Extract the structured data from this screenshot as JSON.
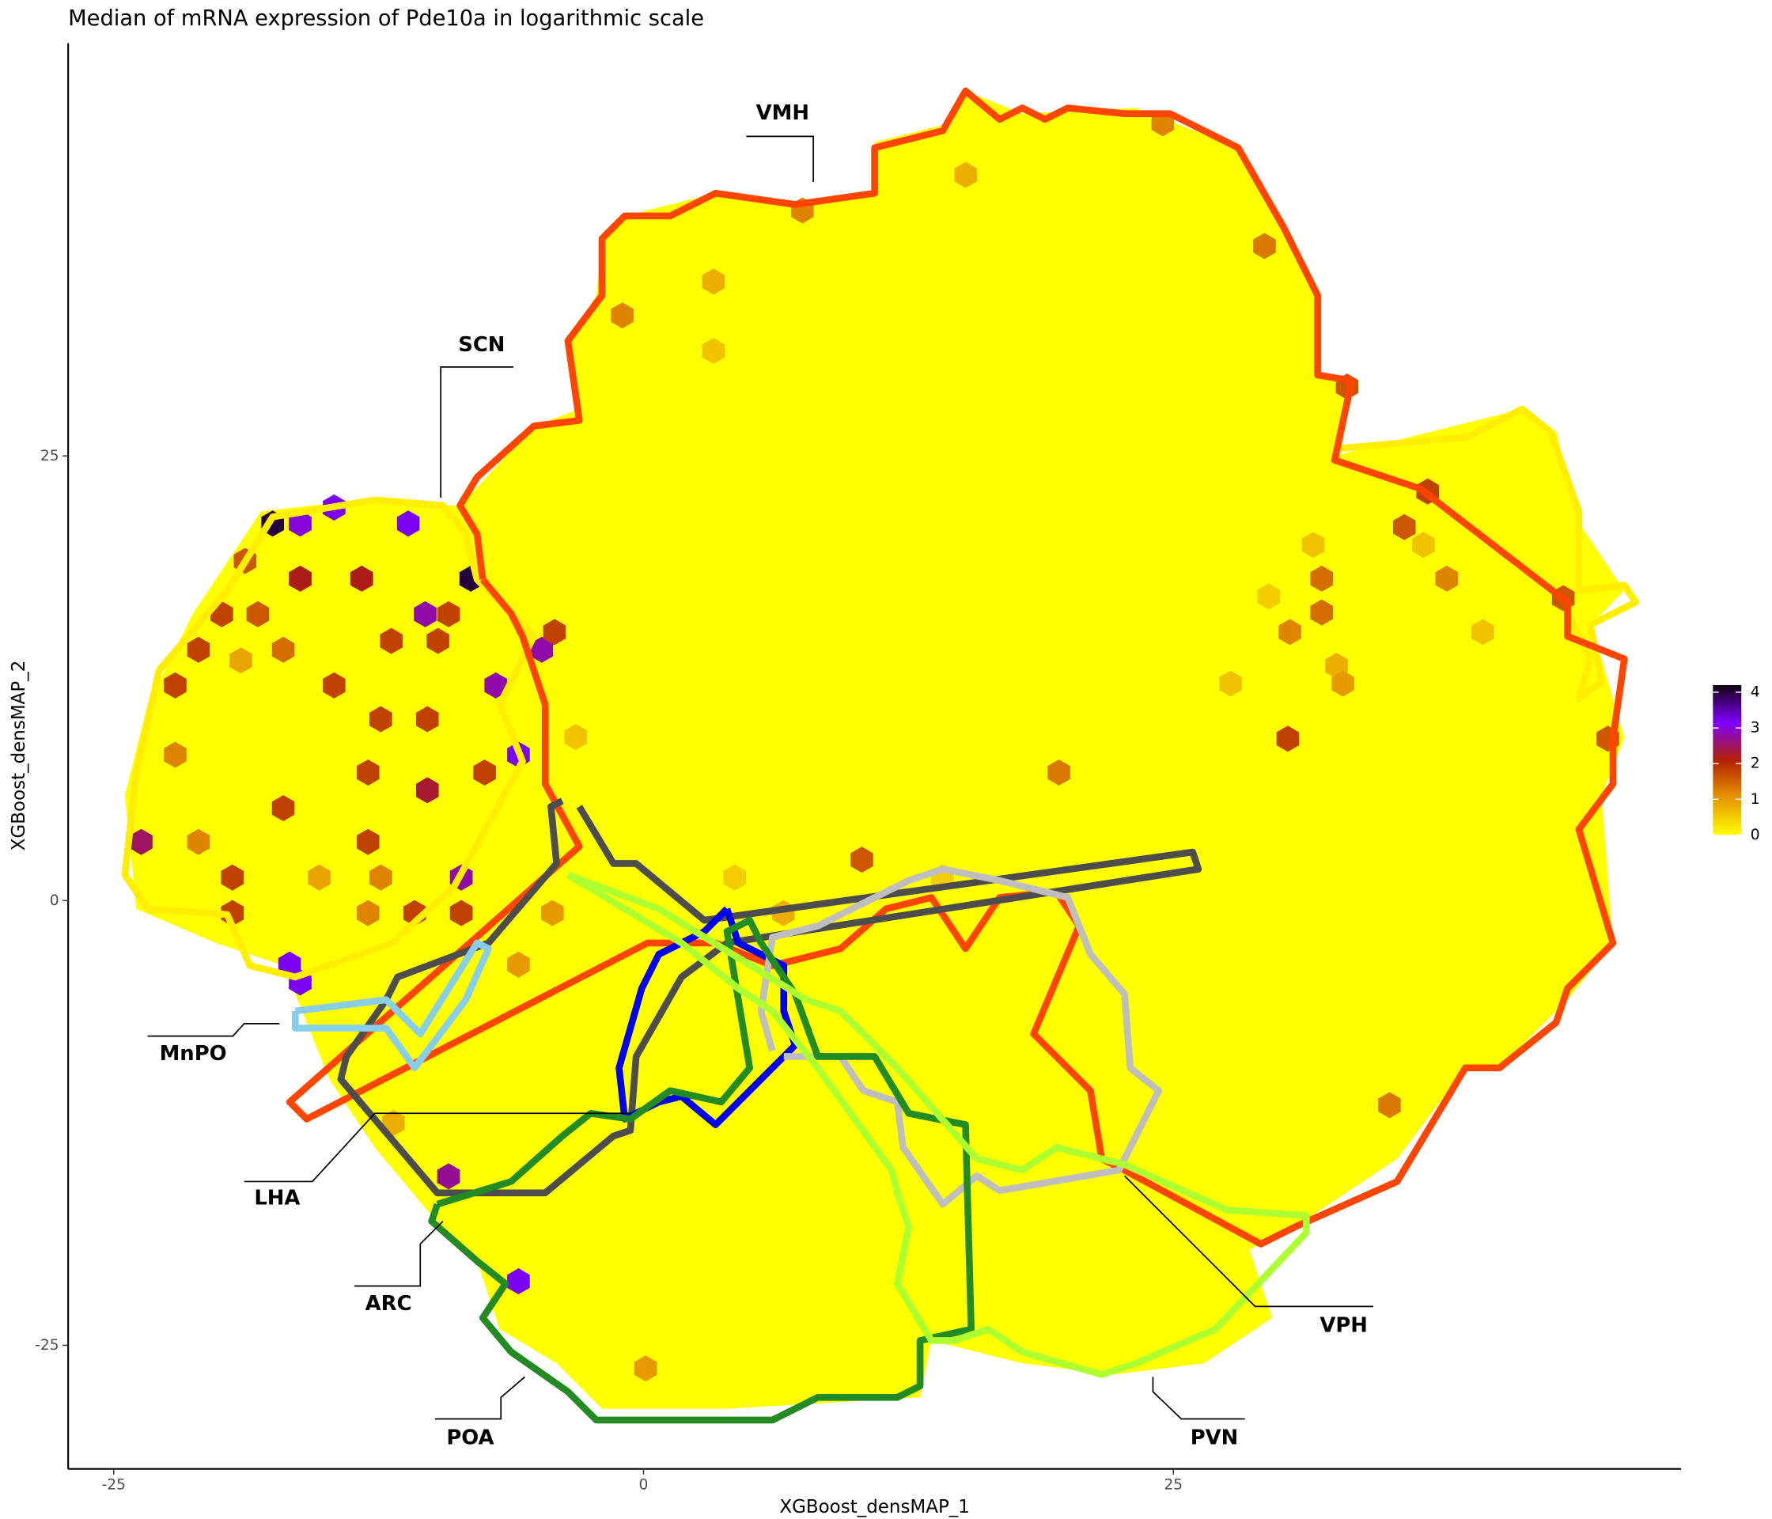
{
  "chart_data": {
    "type": "hexbin",
    "title": "Median of mRNA expression of Pde10a in logarithmic scale",
    "x_label": "XGBoost_densMAP_1",
    "y_label": "XGBoost_densMAP_2",
    "xlim": [
      -27.15,
      48.96
    ],
    "ylim": [
      -31.95,
      48.2
    ],
    "xticks": [
      -25,
      0,
      25
    ],
    "yticks": [
      -25,
      0,
      25
    ],
    "clim": [
      0,
      4.2
    ],
    "cticks": [
      0,
      1,
      2,
      3,
      4
    ],
    "colorscale": [
      "#ffff00",
      "#e69500",
      "#b22000",
      "#8000ff",
      "#100010"
    ],
    "annotations": [
      "VMH",
      "SCN",
      "MnPO",
      "LHA",
      "ARC",
      "POA",
      "PVN",
      "VPH"
    ],
    "hexbins": {
      "x": [
        -17.5,
        -8.15,
        -14.6,
        -11.1,
        -16.2,
        -23.7,
        -5.9,
        -6.97,
        -4.8,
        -9.2,
        -5.9,
        -16.7,
        -16.2,
        -8.6,
        -10.3,
        -19.9,
        -21,
        -22.1,
        -14.6,
        -12.4,
        -10.2,
        -10.2,
        -13,
        -7.5,
        -17,
        -19.4,
        -19.4,
        -13,
        -10.8,
        -8.6,
        10.3,
        35.9,
        37,
        30.4,
        43.4,
        45.5,
        32,
        33.2,
        -4.2,
        -16.2,
        -13.3,
        -18.2,
        -9.2,
        -11.9,
        -9.7,
        -17,
        -18.8,
        24.5,
        15.2,
        7.5,
        29.3,
        -1,
        3.3,
        3.3,
        19.6,
        31.6,
        32.7,
        30.5,
        29.5,
        37.9,
        39.6,
        27.7,
        35.2,
        32,
        -22.1,
        -19,
        -21,
        -15.3,
        -12.4,
        -13,
        -5.9,
        -4.3,
        -3.2,
        4.3,
        14.1,
        6.6,
        0.1,
        -11.8,
        33,
        36.8
      ],
      "y": [
        21.2,
        18.1,
        22.1,
        21.2,
        21.2,
        3.3,
        8.2,
        12.1,
        14.1,
        -15.5,
        -21.4,
        -3.6,
        -4.6,
        1.3,
        16.1,
        16.1,
        14.1,
        12.1,
        12.1,
        10.2,
        10.2,
        6.2,
        7.2,
        7.2,
        5.2,
        1.3,
        -0.7,
        3.3,
        -0.7,
        -0.7,
        2.3,
        21,
        23,
        9.1,
        17,
        9.1,
        18.1,
        28.9,
        15.1,
        18.1,
        18.1,
        16.1,
        16.1,
        14.6,
        14.6,
        14.1,
        19.1,
        43.7,
        40.8,
        38.8,
        36.8,
        32.9,
        34.8,
        30.9,
        7.2,
        20,
        13.2,
        15.1,
        17.1,
        18.1,
        15.1,
        12.2,
        -11.5,
        16.2,
        8.2,
        13.5,
        3.3,
        1.3,
        1.3,
        -0.7,
        -3.6,
        -0.7,
        9.2,
        1.3,
        1.3,
        -0.7,
        -26.3,
        -12.5,
        12.2,
        20
      ],
      "values": [
        4,
        4,
        3.2,
        3.2,
        3,
        2.5,
        3.2,
        2.8,
        2.8,
        2.7,
        3.2,
        3.2,
        3.2,
        2.8,
        2.8,
        1.8,
        1.8,
        1.8,
        1.8,
        1.8,
        1.8,
        2.3,
        1.8,
        1.8,
        1.8,
        1.8,
        1.8,
        1.8,
        1.8,
        1.8,
        1.6,
        1.6,
        1.8,
        1.8,
        1.6,
        1.6,
        1.4,
        1.6,
        1.8,
        2.2,
        2.2,
        1.6,
        1.8,
        1.8,
        1.8,
        1.4,
        1.6,
        1.2,
        0.8,
        1.2,
        1.3,
        1.2,
        0.8,
        0.6,
        1.3,
        0.6,
        0.8,
        1.2,
        0.5,
        1.2,
        0.6,
        0.6,
        1.3,
        1.4,
        1.2,
        0.9,
        1.2,
        0.9,
        1.2,
        1.2,
        1,
        1,
        0.6,
        0.5,
        0.5,
        0.8,
        1,
        0.8,
        1,
        0.6
      ]
    }
  }
}
